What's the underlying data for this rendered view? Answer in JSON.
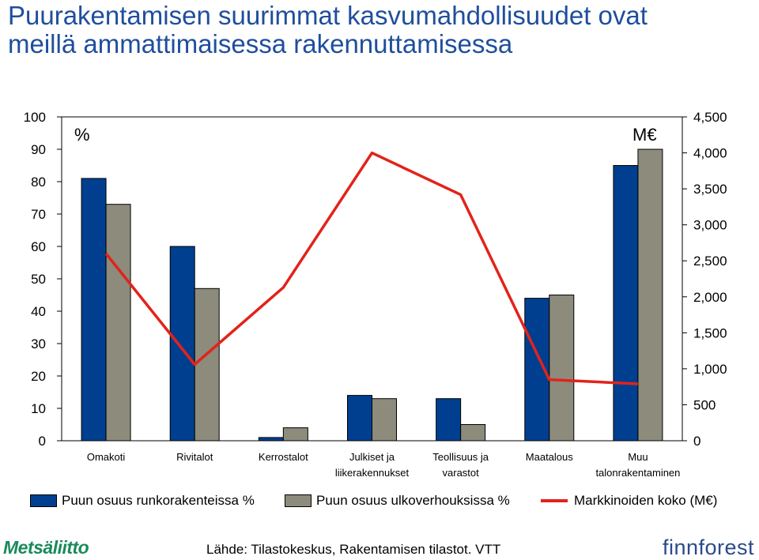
{
  "title": {
    "line1": "Puurakentamisen suurimmat kasvumahdollisuudet ovat",
    "line2": "meillä ammattimaisessa rakennuttamisessa"
  },
  "chart_data": {
    "type": "bar",
    "categories": [
      [
        "Omakoti"
      ],
      [
        "Rivitalot"
      ],
      [
        "Kerrostalot"
      ],
      [
        "Julkiset ja",
        "liikerakennukset"
      ],
      [
        "Teollisuus ja",
        "varastot"
      ],
      [
        "Maatalous"
      ],
      [
        "Muu",
        "talonrakentaminen"
      ]
    ],
    "left_axis": {
      "unit_label": "%",
      "min": 0,
      "max": 100,
      "ticks": [
        0,
        10,
        20,
        30,
        40,
        50,
        60,
        70,
        80,
        90,
        100
      ]
    },
    "right_axis": {
      "unit_label": "M€",
      "min": 0,
      "max": 4500,
      "ticks": [
        "0",
        "500",
        "1,000",
        "1,500",
        "2,000",
        "2,500",
        "3,000",
        "3,500",
        "4,000",
        "4,500"
      ]
    },
    "series": [
      {
        "name": "Puun osuus runkorakenteissa %",
        "type": "bar",
        "axis": "left",
        "color": "#003f8f",
        "values": [
          81,
          60,
          1,
          14,
          13,
          44,
          85
        ]
      },
      {
        "name": "Puun osuus ulkoverhouksissa %",
        "type": "bar",
        "axis": "left",
        "color": "#8c8b7c",
        "values": [
          73,
          47,
          4,
          13,
          5,
          45,
          90
        ]
      },
      {
        "name": "Markkinoiden koko (M€)",
        "type": "line",
        "axis": "right",
        "color": "#e2231a",
        "values": [
          2600,
          1060,
          2130,
          4000,
          3420,
          850,
          790
        ]
      }
    ],
    "grid": false,
    "legend_position": "bottom"
  },
  "source": "Lähde: Tilastokeskus, Rakentamisen tilastot. VTT",
  "logos": {
    "left": "Metsäliitto",
    "right": "finnforest"
  }
}
